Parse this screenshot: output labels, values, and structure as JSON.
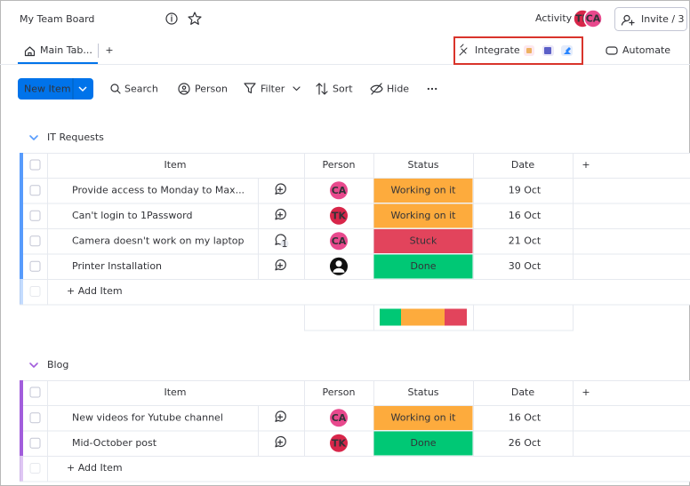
{
  "header": {
    "title": "My Team Board",
    "activity": "Activity",
    "avatars": [
      "TK",
      "CA"
    ],
    "invite": "Invite / 3"
  },
  "tabs": {
    "main": "Main Tab...",
    "add": "+",
    "integrate": "Integrate",
    "automate": "Automate"
  },
  "toolbar": {
    "new_item": "New Item",
    "search": "Search",
    "person": "Person",
    "filter": "Filter",
    "sort": "Sort",
    "hide": "Hide",
    "more": "..."
  },
  "groups": [
    {
      "title": "IT Requests",
      "color": "#579bfc",
      "columns": [
        "Item",
        "Person",
        "Status",
        "Date",
        "+"
      ],
      "rows": [
        {
          "item": "Provide access to Monday to Max...",
          "person": "CA",
          "person_color": "#e8498d",
          "status": "Working on it",
          "status_color": "#fdab3d",
          "date": "19 Oct"
        },
        {
          "item": "Can't login to 1Password",
          "person": "TK",
          "person_color": "#d8264a",
          "status": "Working on it",
          "status_color": "#fdab3d",
          "date": "16 Oct"
        },
        {
          "item": "Camera doesn't work on my laptop",
          "person": "CA",
          "person_color": "#e8498d",
          "comments": 1,
          "status": "Stuck",
          "status_color": "#e2445c",
          "date": "21 Oct"
        },
        {
          "item": "Printer Installation",
          "status": "Done",
          "status_color": "#00c875",
          "date": "30 Oct"
        }
      ],
      "add_item": "+ Add Item"
    },
    {
      "title": "Blog",
      "color": "#a25ddc",
      "columns": [
        "Item",
        "Person",
        "Status",
        "Date",
        "+"
      ],
      "rows": [
        {
          "item": "New videos for Yutube channel",
          "person": "CA",
          "person_color": "#e8498d",
          "status": "Working on it",
          "status_color": "#fdab3d",
          "date": "16 Oct"
        },
        {
          "item": "Mid-October post",
          "person": "TK",
          "person_color": "#d8264a",
          "status": "Done",
          "status_color": "#00c875",
          "date": "26 Oct"
        }
      ],
      "add_item": "+ Add Item"
    }
  ]
}
